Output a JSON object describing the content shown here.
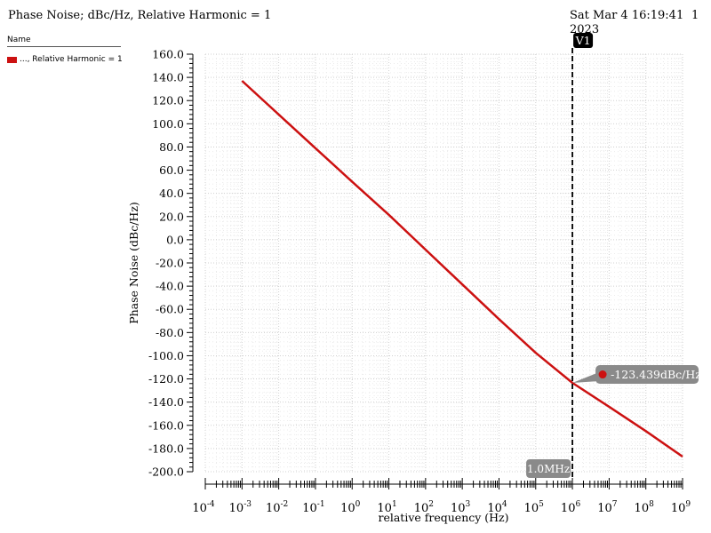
{
  "header": {
    "title": "Phase Noise; dBc/Hz, Relative Harmonic = 1",
    "date_line1": "Sat Mar 4 16:19:41",
    "date_line2": "2023",
    "page_number": "1"
  },
  "legend": {
    "header": "Name",
    "items": [
      {
        "label": "..., Relative Harmonic = 1",
        "color": "#cc1111"
      }
    ]
  },
  "chart_data": {
    "type": "line",
    "xscale": "log",
    "xlabel": "relative frequency (Hz)",
    "ylabel": "Phase Noise (dBc/Hz)",
    "xlim": [
      0.0001,
      1000000000
    ],
    "ylim": [
      -200,
      160
    ],
    "grid": true,
    "x_tick_exponents": [
      -4,
      -3,
      -2,
      -1,
      0,
      1,
      2,
      3,
      4,
      5,
      6,
      7,
      8,
      9
    ],
    "y_ticks": [
      {
        "value": 160,
        "label": "160.0"
      },
      {
        "value": 140,
        "label": "140.0"
      },
      {
        "value": 120,
        "label": "120.0"
      },
      {
        "value": 100,
        "label": "100.0"
      },
      {
        "value": 80,
        "label": "80.0"
      },
      {
        "value": 60,
        "label": "60.0"
      },
      {
        "value": 40,
        "label": "40.0"
      },
      {
        "value": 20,
        "label": "20.0"
      },
      {
        "value": 0,
        "label": "0.0"
      },
      {
        "value": -20,
        "label": "-20.0"
      },
      {
        "value": -40,
        "label": "-40.0"
      },
      {
        "value": -60,
        "label": "-60.0"
      },
      {
        "value": -80,
        "label": "-80.0"
      },
      {
        "value": -100,
        "label": "-100.0"
      },
      {
        "value": -120,
        "label": "-120.0"
      },
      {
        "value": -140,
        "label": "-140.0"
      },
      {
        "value": -160,
        "label": "-160.0"
      },
      {
        "value": -180,
        "label": "-180.0"
      },
      {
        "value": -200,
        "label": "-200.0"
      }
    ],
    "series": [
      {
        "color": "#cc1111",
        "x": [
          0.001,
          0.01,
          0.1,
          1,
          10,
          100,
          1000,
          10000,
          100000,
          1000000,
          10000000,
          100000000,
          1000000000
        ],
        "y": [
          137.0,
          108.0,
          79.0,
          50.0,
          21.5,
          -8.5,
          -38.5,
          -68.5,
          -97.5,
          -123.4,
          -144.0,
          -165.0,
          -187.0
        ]
      }
    ],
    "marker_v": {
      "name": "V1",
      "x": 1000000,
      "x_label": "1.0MHz"
    },
    "marker_point": {
      "x": 1000000,
      "y": -123.439,
      "label": "-123.439dBc/Hz",
      "color": "#cc1111"
    }
  }
}
